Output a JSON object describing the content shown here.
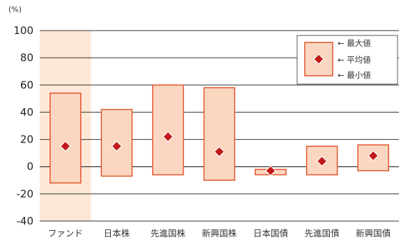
{
  "chart_data": {
    "type": "range-bar",
    "unit_label": "(%)",
    "ylim": [
      -40,
      100
    ],
    "y_ticks": [
      100,
      80,
      60,
      40,
      20,
      0,
      -20,
      -40
    ],
    "grid": true,
    "categories": [
      "ファンド",
      "日本株",
      "先進国株",
      "新興国株",
      "日本国債",
      "先進国債",
      "新興国債"
    ],
    "highlighted_category": "ファンド",
    "series": [
      {
        "name": "最大値",
        "values": [
          54,
          42,
          60,
          58,
          -2,
          15,
          16
        ]
      },
      {
        "name": "平均値",
        "values": [
          15,
          15,
          22,
          11,
          -3,
          4,
          8
        ]
      },
      {
        "name": "最小値",
        "values": [
          -12,
          -7,
          -6,
          -10,
          -6,
          -6,
          -3
        ]
      }
    ],
    "legend": {
      "placement": "top-right",
      "max_label": "← 最大値",
      "avg_label": "← 平均値",
      "min_label": "← 最小値"
    },
    "colors": {
      "bar_fill": "#fbd7c1",
      "bar_stroke": "#e2542e",
      "marker": "#c11a1a",
      "highlight_band": "#fde8d7",
      "grid": "#333333"
    }
  }
}
